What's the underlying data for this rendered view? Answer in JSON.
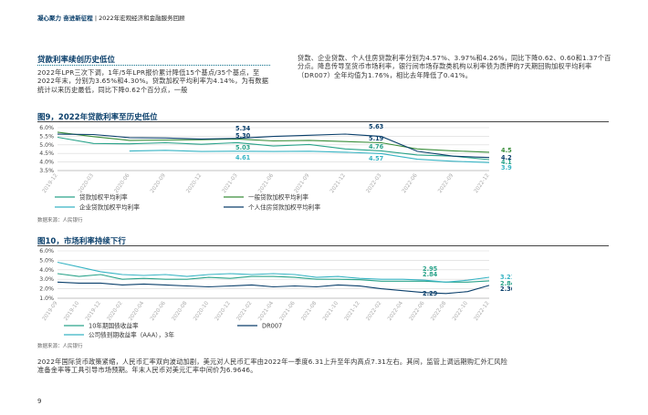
{
  "header": {
    "brand": "凝心聚力 奋进新征程",
    "separator": "|",
    "subtitle": "2022年宏观经济和金融服务回顾"
  },
  "section": {
    "title": "贷款利率续创历史低位",
    "left_paragraph": "2022年LPR三次下调，1年/5年LPR报价累计降低15个基点/35个基点，至2022年末，分别为3.65%和4.30%。贷款加权平均利率为4.14%，为有数据统计以来历史最低，同比下降0.62个百分点，一般",
    "right_paragraph": "贷款、企业贷款、个人住房贷款利率分别为4.57%、3.97%和4.26%，同比下降0.62、0.60和1.37个百分点。降息传导至货币市场利率，银行间市场存款类机构以利率债为质押的7天期回购加权平均利率（DR007）全年均值为1.76%，相比去年降低了0.41%。"
  },
  "figure9": {
    "title": "图9，2022年贷款利率至历史低位",
    "source": "数据来源：人民银行",
    "chart_data": {
      "type": "line",
      "categories": [
        "2019-12",
        "2020-03",
        "2020-06",
        "2020-09",
        "2020-12",
        "2021-03",
        "2021-06",
        "2021-09",
        "2021-12",
        "2022-03",
        "2022-06",
        "2022-09",
        "2022-12"
      ],
      "yticks": [
        "6.0%",
        "5.5%",
        "5.0%",
        "4.5%",
        "4.0%",
        "3.5%"
      ],
      "ylim": [
        3.5,
        6.0
      ],
      "series": [
        {
          "name": "贷款加权平均利率",
          "color": "#2aa38a",
          "values": [
            5.44,
            5.08,
            5.06,
            5.12,
            5.03,
            5.13,
            4.93,
            5.02,
            4.76,
            4.65,
            4.41,
            4.34,
            4.14
          ]
        },
        {
          "name": "一般贷款加权平均利率",
          "color": "#3a8e3a",
          "values": [
            5.74,
            5.48,
            5.26,
            5.28,
            5.3,
            5.34,
            5.23,
            5.26,
            5.19,
            5.12,
            4.76,
            4.65,
            4.57
          ]
        },
        {
          "name": "企业贷款加权平均利率",
          "color": "#38b4c4",
          "values": [
            null,
            null,
            4.64,
            4.68,
            4.61,
            4.63,
            4.61,
            4.63,
            4.57,
            4.49,
            4.16,
            4.04,
            3.97
          ]
        },
        {
          "name": "个人住房贷款加权平均利率",
          "color": "#0a3f6b",
          "values": [
            5.62,
            5.6,
            5.42,
            5.4,
            5.34,
            5.38,
            5.49,
            5.56,
            5.63,
            5.49,
            4.62,
            4.34,
            4.26
          ]
        }
      ],
      "annotations": [
        "5.34",
        "5.30",
        "5.03",
        "4.61",
        "5.63",
        "5.19",
        "4.76",
        "4.57",
        "4.57",
        "4.26",
        "4.14",
        "3.97"
      ]
    }
  },
  "figure10": {
    "title": "图10，市场利率持续下行",
    "source": "数据来源：人民银行",
    "chart_data": {
      "type": "line",
      "categories": [
        "2019-09",
        "2019-10",
        "2019-12",
        "2020-02",
        "2020-04",
        "2020-06",
        "2020-08",
        "2020-10",
        "2020-12",
        "2021-02",
        "2021-04",
        "2021-06",
        "2021-08",
        "2021-10",
        "2021-12",
        "2022-02",
        "2022-04",
        "2022-06",
        "2022-08",
        "2022-10",
        "2022-12"
      ],
      "yticks": [
        "6.0%",
        "5.0%",
        "4.0%",
        "3.0%",
        "2.0%",
        "1.0%"
      ],
      "ylim": [
        1.0,
        6.0
      ],
      "series": [
        {
          "name": "10年期国债收益率",
          "color": "#2aa38a",
          "values": [
            3.6,
            3.3,
            3.5,
            3.0,
            3.1,
            3.0,
            3.0,
            3.2,
            3.1,
            3.3,
            3.3,
            3.2,
            3.0,
            3.0,
            2.95,
            2.8,
            2.8,
            2.8,
            2.7,
            2.7,
            2.84
          ]
        },
        {
          "name": "DR007",
          "color": "#0a3f6b",
          "values": [
            2.7,
            2.6,
            2.6,
            2.4,
            2.5,
            2.4,
            2.3,
            2.2,
            2.3,
            2.4,
            2.2,
            2.3,
            2.2,
            2.4,
            2.29,
            2.0,
            1.8,
            1.6,
            1.5,
            1.7,
            2.36
          ]
        },
        {
          "name": "公司债到期收益率（AAA），3年",
          "color": "#38b4c4",
          "values": [
            4.8,
            4.3,
            3.8,
            3.5,
            3.4,
            3.5,
            3.3,
            3.5,
            3.6,
            3.5,
            3.6,
            3.5,
            3.2,
            3.3,
            3.1,
            3.0,
            3.0,
            2.9,
            2.7,
            2.9,
            3.21
          ]
        }
      ],
      "annotations": [
        "2.95",
        "2.84",
        "2.29",
        "3.21",
        "2.84",
        "2.36"
      ]
    }
  },
  "bottom_paragraph": "2022年国际货币政策紧缩，人民币汇率双向波动加剧，美元对人民币汇率由2022年一季度6.31上升至年内高点7.31左右。其间，监管上调远期购汇外汇风险准备金率等工具引导市场预期。年末人民币对美元汇率中间价为6.9646。",
  "page_number": "9"
}
